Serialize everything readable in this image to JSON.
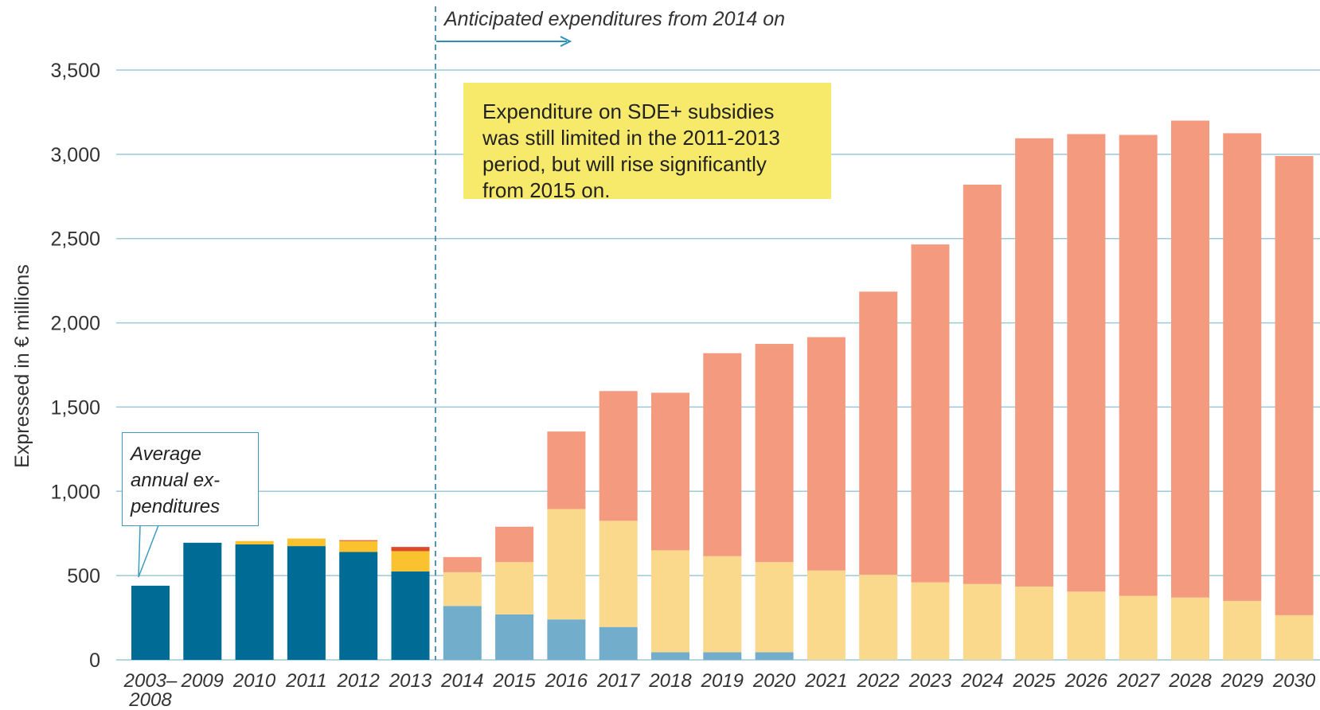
{
  "chart_data": {
    "type": "bar",
    "stacked": true,
    "ylabel": "Expressed in € millions",
    "ylim": [
      0,
      3500
    ],
    "yticks": [
      0,
      500,
      1000,
      1500,
      2000,
      2500,
      3000,
      3500
    ],
    "ytick_labels": [
      "0",
      "500",
      "1,000",
      "1,500",
      "2,000",
      "2,500",
      "3,000",
      "3,500"
    ],
    "grid": true,
    "categories": [
      "2003–2008",
      "2009",
      "2010",
      "2011",
      "2012",
      "2013",
      "2014",
      "2015",
      "2016",
      "2017",
      "2018",
      "2019",
      "2020",
      "2021",
      "2022",
      "2023",
      "2024",
      "2025",
      "2026",
      "2027",
      "2028",
      "2029",
      "2030"
    ],
    "category_labels": [
      [
        "2003–",
        "2008"
      ],
      [
        "2009"
      ],
      [
        "2010"
      ],
      [
        "2011"
      ],
      [
        "2012"
      ],
      [
        "2013"
      ],
      [
        "2014"
      ],
      [
        "2015"
      ],
      [
        "2016"
      ],
      [
        "2017"
      ],
      [
        "2018"
      ],
      [
        "2019"
      ],
      [
        "2020"
      ],
      [
        "2021"
      ],
      [
        "2022"
      ],
      [
        "2023"
      ],
      [
        "2024"
      ],
      [
        "2025"
      ],
      [
        "2026"
      ],
      [
        "2027"
      ],
      [
        "2028"
      ],
      [
        "2029"
      ],
      [
        "2030"
      ]
    ],
    "series": [
      {
        "color": "#006b94",
        "values": [
          440,
          695,
          685,
          675,
          640,
          525,
          0,
          0,
          0,
          0,
          0,
          0,
          0,
          0,
          0,
          0,
          0,
          0,
          0,
          0,
          0,
          0,
          0
        ]
      },
      {
        "color": "#f9c22e",
        "values": [
          0,
          0,
          20,
          45,
          65,
          120,
          0,
          0,
          0,
          0,
          0,
          0,
          0,
          0,
          0,
          0,
          0,
          0,
          0,
          0,
          0,
          0,
          0
        ]
      },
      {
        "color": "#dd4a2b",
        "values": [
          0,
          0,
          0,
          0,
          5,
          25,
          0,
          0,
          0,
          0,
          0,
          0,
          0,
          0,
          0,
          0,
          0,
          0,
          0,
          0,
          0,
          0,
          0
        ]
      },
      {
        "color": "#72aecc",
        "values": [
          0,
          0,
          0,
          0,
          0,
          0,
          320,
          270,
          240,
          195,
          45,
          45,
          45,
          0,
          0,
          0,
          0,
          0,
          0,
          0,
          0,
          0,
          0
        ]
      },
      {
        "color": "#fbd98c",
        "values": [
          0,
          0,
          0,
          0,
          0,
          0,
          200,
          310,
          655,
          630,
          605,
          570,
          535,
          530,
          505,
          460,
          450,
          435,
          405,
          380,
          370,
          350,
          265
        ]
      },
      {
        "color": "#f39a7f",
        "values": [
          0,
          0,
          0,
          0,
          0,
          0,
          90,
          210,
          460,
          770,
          935,
          1205,
          1295,
          1385,
          1680,
          2005,
          2370,
          2660,
          2715,
          2735,
          2830,
          2775,
          2725
        ]
      }
    ],
    "annotations": {
      "forecast_label": "Anticipated expenditures from 2014 on",
      "callout_lines": [
        "Expenditure on SDE+ subsidies",
        "was still limited in the 2011-2013",
        "period, but will rise significantly",
        "from 2015 on."
      ],
      "average_lines": [
        "Average",
        "annual ex-",
        "penditures"
      ]
    },
    "colors": {
      "grid": "#9ec7d8",
      "text": "#333333",
      "divider": "#1f6f99",
      "arrow": "#2d8fb5",
      "callout_bg": "#f7ea6b",
      "box_border": "#3b9cc0"
    }
  }
}
